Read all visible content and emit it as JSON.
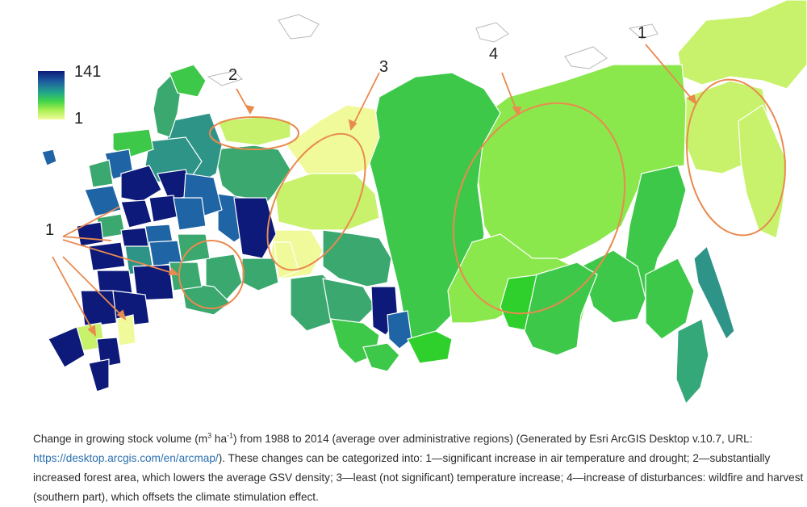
{
  "legend": {
    "max_label": "141",
    "min_label": "1"
  },
  "callouts": {
    "c1_left": "1",
    "c1_right": "1",
    "c2": "2",
    "c3": "3",
    "c4": "4"
  },
  "colors": {
    "very_high": "#0d1a7a",
    "high": "#1f64a4",
    "mid_high": "#2f9488",
    "mid": "#3aa86f",
    "green": "#3ec84a",
    "bright_green": "#2fd02b",
    "light_green": "#8be84c",
    "yellow_green": "#c8f26b",
    "pale_yellow": "#f0fa9a",
    "annotation": "#e98a4f"
  },
  "caption": {
    "prefix": "Change in growing stock volume (m",
    "sup1": "3",
    "mid1": " ha",
    "sup2": "-1",
    "rest1": ") from 1988 to 2014 (average over administrative regions) (Generated by Esri ArcGIS Desktop v.10.7, URL:",
    "link": "https://desktop.arcgis.com/en/arcmap/",
    "rest2": "). These changes can be categorized into: 1—significant increase in air temperature and drought; 2—substantially",
    "line3": "increased forest area, which lowers the average GSV density; 3—least (not significant) temperature increase; 4—increase of disturbances: wildfire and harvest",
    "line4": "(southern part), which offsets the climate stimulation effect."
  }
}
